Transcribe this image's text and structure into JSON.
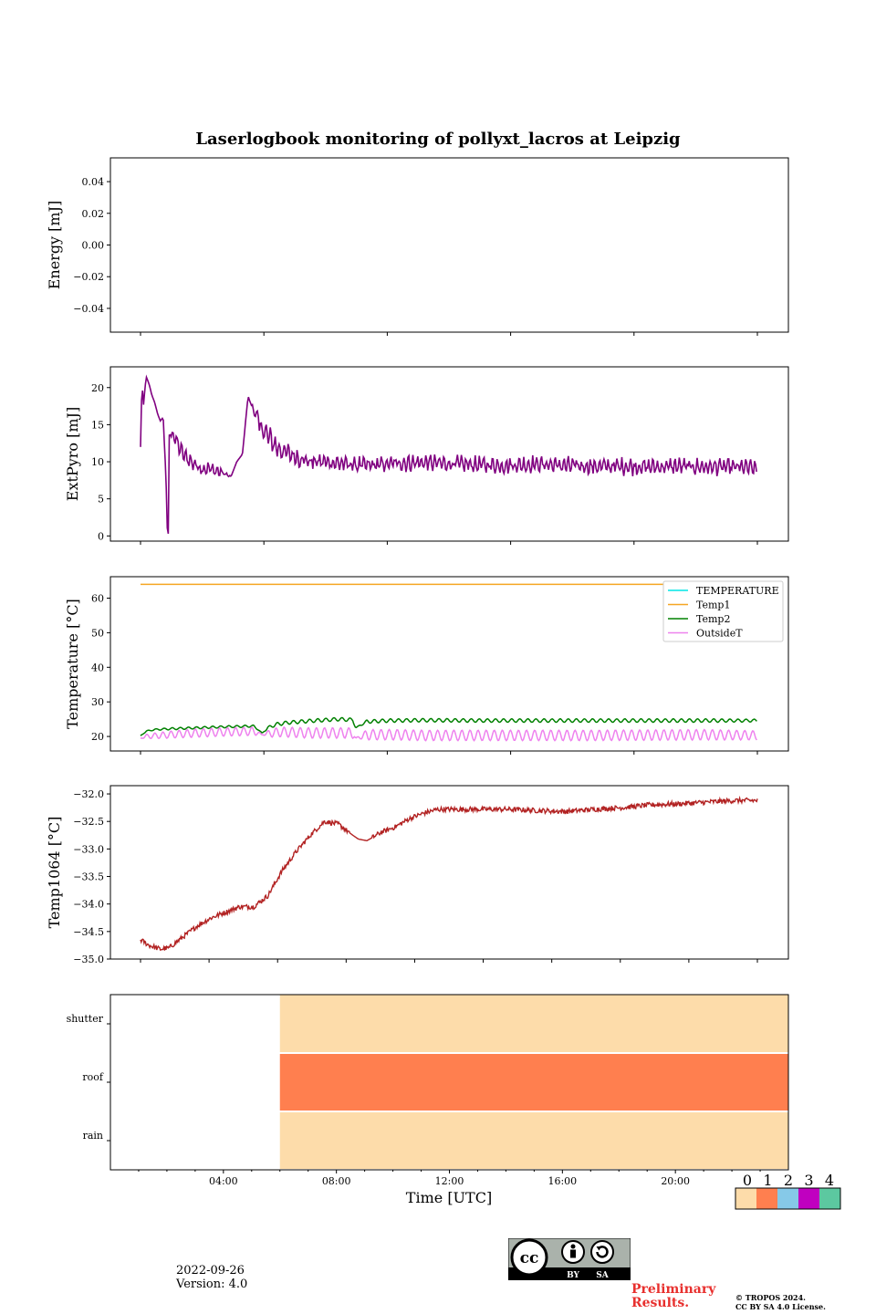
{
  "chart_data": [
    {
      "type": "line",
      "title": "Laserlogbook monitoring of pollyxt_lacros at Leipzig",
      "ylabel": "Energy [mJ]",
      "ylim": [
        -0.055,
        0.055
      ],
      "yticks": [
        "0.04",
        "0.02",
        "0.00",
        "−0.02",
        "−0.04"
      ],
      "ytick_values": [
        0.04,
        0.02,
        0.0,
        -0.02,
        -0.04
      ],
      "series": []
    },
    {
      "type": "line",
      "ylabel": "ExtPyro [mJ]",
      "ylim": [
        -0.7,
        22.8
      ],
      "yticks": [
        "20",
        "15",
        "10",
        "5",
        "0"
      ],
      "ytick_values": [
        20,
        15,
        10,
        5,
        0
      ],
      "color": "#800080",
      "x": [
        0.0,
        0.05,
        0.1,
        0.2,
        0.3,
        0.4,
        0.5,
        0.6,
        0.7,
        0.8,
        0.9,
        0.95,
        0.99,
        1.0,
        1.1,
        1.3,
        1.5,
        1.8,
        2.1,
        2.5,
        2.9,
        3.2,
        3.4,
        3.5,
        3.6,
        3.8,
        4.0,
        4.2,
        4.5,
        4.8,
        5.0,
        5.3,
        5.6,
        6.0,
        6.5,
        7.0,
        7.5,
        8.0,
        8.5,
        9.0,
        10.0,
        11.0,
        12.0,
        13.0,
        14.0,
        15.0,
        16.0,
        17.0,
        18.0,
        19.0,
        20.0,
        21.0,
        21.5,
        21.8
      ],
      "values": [
        12,
        21,
        17.5,
        21.5,
        20.5,
        19,
        18,
        16.5,
        15.5,
        16,
        8,
        0.3,
        15,
        13.5,
        14,
        12.5,
        11,
        10,
        9.2,
        9.0,
        8.5,
        8.0,
        10,
        10.5,
        11.0,
        18.8,
        17.0,
        15.0,
        13.5,
        12.0,
        11.5,
        11.0,
        10.5,
        10.0,
        10.0,
        9.8,
        9.6,
        9.5,
        9.6,
        9.8,
        9.9,
        9.7,
        9.6,
        9.5,
        9.7,
        9.5,
        9.4,
        9.4,
        9.3,
        9.4,
        9.3,
        9.3,
        9.2,
        9.0
      ],
      "noise": [
        0,
        0,
        0,
        0,
        0,
        0,
        0,
        0,
        0,
        0,
        0,
        0,
        0,
        0,
        1.0,
        1.2,
        1.2,
        1.2,
        1.2,
        1.0,
        0.8,
        0,
        0,
        0,
        0,
        0,
        0.8,
        1.6,
        1.6,
        1.6,
        1.4,
        1.4,
        1.4,
        1.3,
        1.3,
        1.2,
        1.2,
        1.2,
        1.2,
        1.2,
        1.2,
        1.2,
        1.2,
        1.2,
        1.2,
        1.2,
        1.2,
        1.2,
        1.2,
        1.2,
        1.2,
        1.2,
        1.2,
        1.0
      ]
    },
    {
      "type": "line",
      "ylabel": "Temperature [°C]",
      "ylim": [
        15.8,
        66.2
      ],
      "yticks": [
        "60",
        "50",
        "40",
        "30",
        "20"
      ],
      "ytick_values": [
        60,
        50,
        40,
        30,
        20
      ],
      "legend": "top-right",
      "series": [
        {
          "name": "TEMPERATURE",
          "color": "#00e5e5",
          "x": [],
          "values": []
        },
        {
          "name": "Temp1",
          "color": "#f5a623",
          "x": [
            0.0,
            21.8
          ],
          "values": [
            64,
            64
          ]
        },
        {
          "name": "Temp2",
          "color": "#008000",
          "x": [
            0.0,
            0.2,
            0.5,
            1.0,
            2.0,
            3.0,
            4.0,
            4.3,
            4.5,
            4.8,
            5.2,
            6.0,
            7.0,
            7.5,
            7.6,
            8.0,
            8.8,
            10.0,
            12.0,
            14.0,
            16.0,
            18.0,
            20.0,
            21.8
          ],
          "values": [
            20.2,
            21.5,
            22.0,
            22.2,
            22.5,
            22.8,
            23.0,
            21.0,
            22.5,
            23.5,
            24.0,
            24.5,
            25.0,
            24.8,
            22.5,
            24.3,
            24.6,
            24.7,
            24.6,
            24.6,
            24.6,
            24.6,
            24.6,
            24.6
          ],
          "osc_amp": [
            0,
            0.2,
            0.2,
            0.3,
            0.3,
            0.3,
            0.3,
            0,
            0.4,
            0.5,
            0.5,
            0.5,
            0.5,
            0.5,
            0,
            0.5,
            0.5,
            0.5,
            0.5,
            0.5,
            0.5,
            0.5,
            0.5,
            0.4
          ]
        },
        {
          "name": "OutsideT",
          "color": "#ee82ee",
          "x": [
            0.0,
            0.2,
            0.5,
            1.0,
            2.0,
            3.0,
            4.0,
            4.3,
            4.6,
            5.0,
            6.0,
            7.0,
            7.5,
            7.6,
            8.0,
            9.0,
            10.0,
            12.0,
            14.0,
            16.0,
            18.0,
            20.0,
            21.8
          ],
          "values": [
            19.5,
            20.0,
            20.2,
            20.5,
            21.0,
            21.3,
            21.5,
            20.5,
            21.0,
            21.3,
            21.0,
            21.0,
            21.0,
            19.5,
            20.5,
            20.5,
            20.3,
            20.3,
            20.3,
            20.3,
            20.4,
            20.5,
            20.3
          ],
          "osc_amp": [
            0,
            0.6,
            0.8,
            1.0,
            1.2,
            1.2,
            1.2,
            0,
            1.2,
            1.4,
            1.5,
            1.5,
            1.5,
            0,
            1.5,
            1.5,
            1.5,
            1.5,
            1.5,
            1.5,
            1.5,
            1.5,
            1.3
          ]
        }
      ]
    },
    {
      "type": "line",
      "ylabel": "Temp1064 [°C]",
      "ylim": [
        -35.0,
        -31.85
      ],
      "yticks": [
        "−32.0",
        "−32.5",
        "−33.0",
        "−33.5",
        "−34.0",
        "−34.5",
        "−35.0"
      ],
      "ytick_values": [
        -32.0,
        -32.5,
        -33.0,
        -33.5,
        -34.0,
        -34.5,
        -35.0
      ],
      "color": "#b22222",
      "x": [
        0.0,
        0.3,
        0.7,
        1.0,
        1.5,
        2.0,
        2.5,
        3.0,
        3.5,
        4.0,
        4.5,
        5.0,
        5.5,
        6.0,
        6.5,
        7.0,
        7.5,
        7.7,
        8.0,
        8.5,
        9.0,
        9.5,
        10.0,
        10.5,
        11.0,
        12.0,
        13.0,
        14.0,
        15.0,
        16.0,
        17.0,
        18.0,
        19.0,
        20.0,
        21.0,
        21.8
      ],
      "values": [
        -34.65,
        -34.75,
        -34.82,
        -34.8,
        -34.6,
        -34.4,
        -34.25,
        -34.15,
        -34.05,
        -34.05,
        -33.85,
        -33.4,
        -33.05,
        -32.75,
        -32.5,
        -32.55,
        -32.75,
        -32.82,
        -32.85,
        -32.7,
        -32.6,
        -32.45,
        -32.35,
        -32.28,
        -32.28,
        -32.28,
        -32.28,
        -32.3,
        -32.32,
        -32.28,
        -32.25,
        -32.2,
        -32.18,
        -32.15,
        -32.12,
        -32.12
      ],
      "noise": 0.09
    },
    {
      "type": "heatmap",
      "rows": [
        "shutter",
        "roof",
        "rain"
      ],
      "xlabel": "Time [UTC]",
      "xlim": [
        0,
        24
      ],
      "xticks": [
        "04:00",
        "08:00",
        "12:00",
        "16:00",
        "20:00"
      ],
      "xtick_values": [
        4,
        8,
        12,
        16,
        20
      ],
      "start_hour": 6.0,
      "end_hour": 24.0,
      "row_values": [
        0,
        1,
        0
      ],
      "colorbar": {
        "labels": [
          "0",
          "1",
          "2",
          "3",
          "4"
        ],
        "colors": [
          "#fddcaa",
          "#ff7f4f",
          "#86c9e8",
          "#c000c0",
          "#5cc8a0"
        ]
      }
    }
  ],
  "panel_ticks": {
    "count_upper": 6,
    "count_temp1064": 10
  },
  "footer": {
    "date": "2022-09-26",
    "version": "Version: 4.0",
    "preliminary_line1": "Preliminary",
    "preliminary_line2": "Results.",
    "copyright_line1": "© TROPOS 2024.",
    "copyright_line2": "CC BY SA 4.0 License.",
    "cc_by": "BY",
    "cc_sa": "SA"
  }
}
